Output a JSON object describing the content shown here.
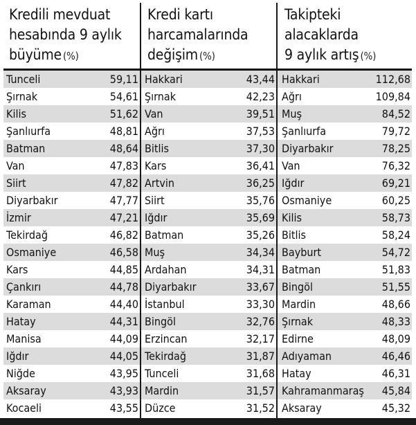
{
  "columns": [
    {
      "title_line1": "Kredili mevduat",
      "title_line2": "hesabında 9 aylık",
      "title_line3": "büyüme",
      "unit": "(%)",
      "rows": [
        {
          "name": "Tunceli",
          "value": "59,11"
        },
        {
          "name": "Şırnak",
          "value": "54,61"
        },
        {
          "name": "Kilis",
          "value": "51,62"
        },
        {
          "name": "Şanlıurfa",
          "value": "48,81"
        },
        {
          "name": "Batman",
          "value": "48,64"
        },
        {
          "name": "Van",
          "value": "47,83"
        },
        {
          "name": "Siirt",
          "value": "47,82"
        },
        {
          "name": "Diyarbakır",
          "value": "47,77"
        },
        {
          "name": "İzmir",
          "value": "47,21"
        },
        {
          "name": "Tekirdağ",
          "value": "46,82"
        },
        {
          "name": "Osmaniye",
          "value": "46,58"
        },
        {
          "name": "Kars",
          "value": "44,85"
        },
        {
          "name": "Çankırı",
          "value": "44,78"
        },
        {
          "name": "Karaman",
          "value": "44,40"
        },
        {
          "name": "Hatay",
          "value": "44,31"
        },
        {
          "name": "Manisa",
          "value": "44,09"
        },
        {
          "name": "Iğdır",
          "value": "44,05"
        },
        {
          "name": "Niğde",
          "value": "43,95"
        },
        {
          "name": "Aksaray",
          "value": "43,93"
        },
        {
          "name": "Kocaeli",
          "value": "43,55"
        }
      ]
    },
    {
      "title_line1": "Kredi kartı",
      "title_line2": "harcamalarında",
      "title_line3": "değişim",
      "unit": "(%)",
      "rows": [
        {
          "name": "Hakkari",
          "value": "43,44"
        },
        {
          "name": "Şırnak",
          "value": "42,23"
        },
        {
          "name": "Van",
          "value": "39,51"
        },
        {
          "name": "Ağrı",
          "value": "37,53"
        },
        {
          "name": "Bitlis",
          "value": "37,30"
        },
        {
          "name": "Kars",
          "value": "36,41"
        },
        {
          "name": "Artvin",
          "value": "36,25"
        },
        {
          "name": "Siirt",
          "value": "35,76"
        },
        {
          "name": "Iğdır",
          "value": "35,69"
        },
        {
          "name": "Batman",
          "value": "35,26"
        },
        {
          "name": "Muş",
          "value": "34,34"
        },
        {
          "name": "Ardahan",
          "value": "34,31"
        },
        {
          "name": "Diyarbakır",
          "value": "33,67"
        },
        {
          "name": "İstanbul",
          "value": "33,30"
        },
        {
          "name": "Bingöl",
          "value": "32,76"
        },
        {
          "name": "Erzincan",
          "value": "32,17"
        },
        {
          "name": "Tekirdağ",
          "value": "31,87"
        },
        {
          "name": "Tunceli",
          "value": "31,68"
        },
        {
          "name": "Mardin",
          "value": "31,57"
        },
        {
          "name": "Düzce",
          "value": "31,52"
        }
      ]
    },
    {
      "title_line1": "Takipteki",
      "title_line2": "alacaklarda",
      "title_line3": "9 aylık artış",
      "unit": "(%)",
      "rows": [
        {
          "name": "Hakkari",
          "value": "112,68"
        },
        {
          "name": "Ağrı",
          "value": "109,84"
        },
        {
          "name": "Muş",
          "value": "84,52"
        },
        {
          "name": "Şanlıurfa",
          "value": "79,72"
        },
        {
          "name": "Diyarbakır",
          "value": "78,25"
        },
        {
          "name": "Van",
          "value": "76,32"
        },
        {
          "name": "Iğdır",
          "value": "69,21"
        },
        {
          "name": "Osmaniye",
          "value": "60,25"
        },
        {
          "name": "Kilis",
          "value": "58,73"
        },
        {
          "name": "Bitlis",
          "value": "58,24"
        },
        {
          "name": "Bayburt",
          "value": "54,72"
        },
        {
          "name": "Batman",
          "value": "51,83"
        },
        {
          "name": "Bingöl",
          "value": "51,55"
        },
        {
          "name": "Mardin",
          "value": "48,66"
        },
        {
          "name": "Şırnak",
          "value": "48,33"
        },
        {
          "name": "Edirne",
          "value": "48,09"
        },
        {
          "name": "Adıyaman",
          "value": "46,46"
        },
        {
          "name": "Hatay",
          "value": "46,31"
        },
        {
          "name": "Kahramanmaraş",
          "value": "45,84"
        },
        {
          "name": "Aksaray",
          "value": "45,32"
        }
      ]
    }
  ],
  "colors": {
    "row_shade": "#dcdcdc",
    "rule": "#111111",
    "text": "#111111"
  }
}
